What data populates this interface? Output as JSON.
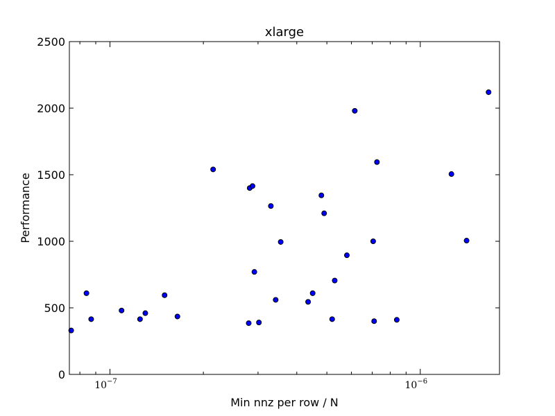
{
  "chart_data": {
    "type": "scatter",
    "title": "xlarge",
    "xlabel": "Min nnz per row / N",
    "ylabel": "Performance",
    "xscale": "log",
    "xlim": [
      7.4e-08,
      1.8e-06
    ],
    "ylim": [
      0,
      2500
    ],
    "yticks": [
      0,
      500,
      1000,
      1500,
      2000,
      2500
    ],
    "ytick_labels": [
      "0",
      "500",
      "1000",
      "1500",
      "2000",
      "2500"
    ],
    "xticks": [
      1e-07,
      1e-06
    ],
    "xtick_labels": [
      {
        "base": "10",
        "exp": "−7"
      },
      {
        "base": "10",
        "exp": "−6"
      }
    ],
    "grid": false,
    "marker_color": "#0000ff",
    "series": [
      {
        "points": [
          {
            "x": 7.5e-08,
            "y": 330
          },
          {
            "x": 8.4e-08,
            "y": 610
          },
          {
            "x": 8.7e-08,
            "y": 415
          },
          {
            "x": 1.09e-07,
            "y": 480
          },
          {
            "x": 1.25e-07,
            "y": 415
          },
          {
            "x": 1.3e-07,
            "y": 460
          },
          {
            "x": 1.5e-07,
            "y": 595
          },
          {
            "x": 1.65e-07,
            "y": 435
          },
          {
            "x": 2.15e-07,
            "y": 1540
          },
          {
            "x": 2.8e-07,
            "y": 385
          },
          {
            "x": 2.82e-07,
            "y": 1400
          },
          {
            "x": 2.88e-07,
            "y": 1415
          },
          {
            "x": 2.92e-07,
            "y": 770
          },
          {
            "x": 3.02e-07,
            "y": 390
          },
          {
            "x": 3.3e-07,
            "y": 1265
          },
          {
            "x": 3.42e-07,
            "y": 560
          },
          {
            "x": 3.55e-07,
            "y": 995
          },
          {
            "x": 4.35e-07,
            "y": 545
          },
          {
            "x": 4.5e-07,
            "y": 610
          },
          {
            "x": 4.8e-07,
            "y": 1345
          },
          {
            "x": 4.9e-07,
            "y": 1210
          },
          {
            "x": 5.2e-07,
            "y": 415
          },
          {
            "x": 5.3e-07,
            "y": 705
          },
          {
            "x": 5.8e-07,
            "y": 895
          },
          {
            "x": 6.15e-07,
            "y": 1980
          },
          {
            "x": 7.05e-07,
            "y": 1000
          },
          {
            "x": 7.1e-07,
            "y": 400
          },
          {
            "x": 7.25e-07,
            "y": 1595
          },
          {
            "x": 8.4e-07,
            "y": 410
          },
          {
            "x": 1.26e-06,
            "y": 1505
          },
          {
            "x": 1.41e-06,
            "y": 1005
          },
          {
            "x": 1.66e-06,
            "y": 2120
          }
        ]
      }
    ]
  }
}
